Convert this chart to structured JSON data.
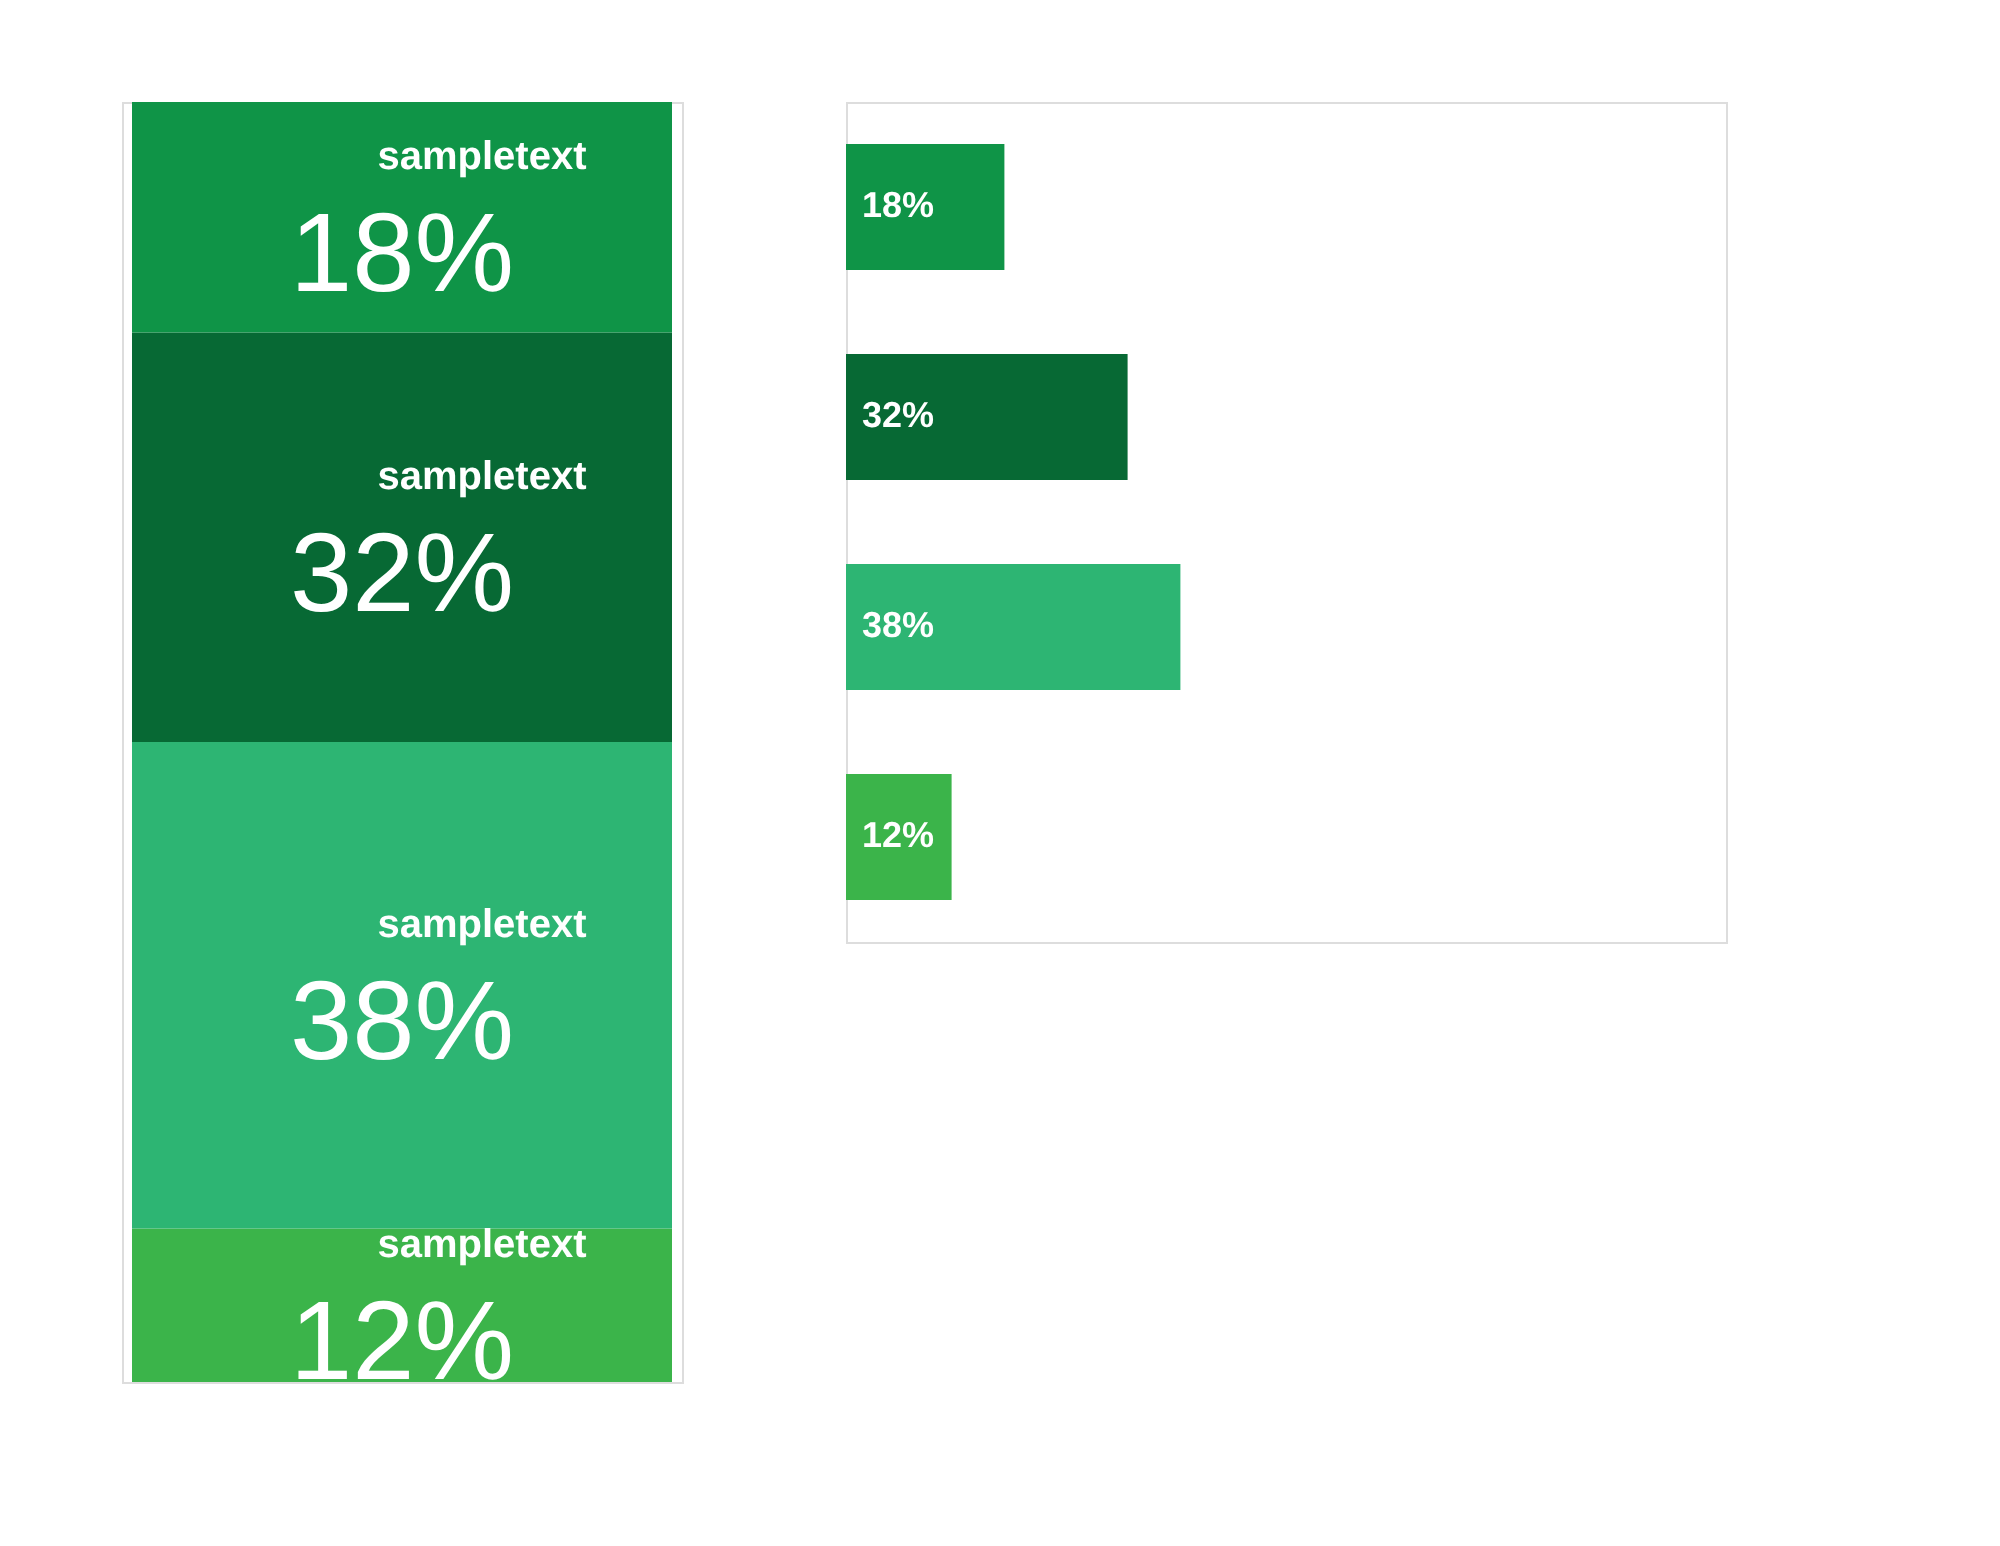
{
  "chart_data": [
    {
      "type": "bar",
      "stacked": true,
      "categories": [
        null
      ],
      "ylim": [
        0,
        100
      ],
      "tick_labels": false,
      "series": [
        {
          "name": "sampletext",
          "color": "#3bb44a",
          "values": [
            12
          ],
          "value_labels": [
            "12%"
          ]
        },
        {
          "name": "sampletext",
          "color": "#2db573",
          "values": [
            38
          ],
          "value_labels": [
            "38%"
          ]
        },
        {
          "name": "sampletext",
          "color": "#076934",
          "values": [
            32
          ],
          "value_labels": [
            "32%"
          ]
        },
        {
          "name": "sampletext",
          "color": "#0f9447",
          "values": [
            18
          ],
          "value_labels": [
            "18%"
          ]
        }
      ]
    },
    {
      "type": "bar",
      "orientation": "horizontal",
      "categories": [
        null,
        null,
        null,
        null
      ],
      "values": [
        18,
        32,
        38,
        12
      ],
      "colors": [
        "#0f9447",
        "#076934",
        "#2db573",
        "#3bb44a"
      ],
      "value_labels": [
        "18%",
        "32%",
        "38%",
        "12%"
      ],
      "xlim": [
        0,
        100
      ],
      "tick_labels": false
    }
  ]
}
